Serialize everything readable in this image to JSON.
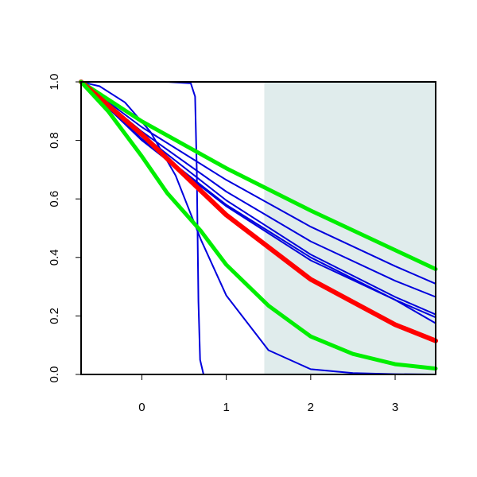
{
  "chart_data": {
    "type": "line",
    "title": "",
    "xlabel": "",
    "ylabel": "",
    "xlim": [
      -0.72,
      3.48
    ],
    "ylim": [
      0,
      1
    ],
    "x_ticks": [
      0,
      1,
      2,
      3
    ],
    "x_tick_labels": [
      "0",
      "1",
      "2",
      "3"
    ],
    "y_ticks": [
      0,
      0.2,
      0.4,
      0.6,
      0.8,
      1.0
    ],
    "y_tick_labels": [
      "0.0",
      "0.2",
      "0.4",
      "0.6",
      "0.8",
      "1.0"
    ],
    "grid": false,
    "shaded_region": {
      "x_from": 1.45,
      "x_to": 3.48,
      "color": "#e0ecec"
    },
    "colors": {
      "blue": "#0000dd",
      "red": "#ff0000",
      "green": "#00ee00"
    },
    "series": [
      {
        "color": "blue",
        "width": 2,
        "x": [
          -0.72,
          0.3,
          0.58,
          0.63,
          0.65,
          0.67,
          0.69,
          0.73,
          3.48
        ],
        "y": [
          1.0,
          1.0,
          0.995,
          0.95,
          0.7,
          0.25,
          0.05,
          0.0,
          0.0
        ]
      },
      {
        "color": "blue",
        "width": 2,
        "x": [
          -0.72,
          -0.5,
          -0.2,
          0.1,
          0.4,
          0.7,
          1.0,
          1.5,
          2.0,
          2.5,
          3.0,
          3.48
        ],
        "y": [
          1.0,
          0.985,
          0.93,
          0.83,
          0.68,
          0.46,
          0.27,
          0.083,
          0.018,
          0.005,
          0.001,
          0.0
        ]
      },
      {
        "color": "blue",
        "width": 2,
        "x": [
          -0.72,
          0.0,
          1.0,
          2.0,
          3.0,
          3.48
        ],
        "y": [
          1.0,
          0.845,
          0.665,
          0.505,
          0.37,
          0.31
        ]
      },
      {
        "color": "blue",
        "width": 2,
        "x": [
          -0.72,
          0.0,
          1.0,
          2.0,
          3.0,
          3.48
        ],
        "y": [
          1.0,
          0.83,
          0.625,
          0.455,
          0.32,
          0.265
        ]
      },
      {
        "color": "blue",
        "width": 2,
        "x": [
          -0.72,
          0.0,
          1.0,
          2.0,
          3.0,
          3.48
        ],
        "y": [
          1.0,
          0.82,
          0.595,
          0.41,
          0.265,
          0.205
        ]
      },
      {
        "color": "blue",
        "width": 2,
        "x": [
          -0.72,
          0.0,
          1.0,
          2.0,
          3.0,
          3.48
        ],
        "y": [
          1.0,
          0.8,
          0.575,
          0.39,
          0.255,
          0.195
        ]
      },
      {
        "color": "blue",
        "width": 2,
        "x": [
          -0.72,
          0.0,
          1.0,
          2.0,
          3.0,
          3.48
        ],
        "y": [
          1.0,
          0.805,
          0.58,
          0.4,
          0.255,
          0.175
        ]
      },
      {
        "color": "green",
        "width": 5,
        "x": [
          -0.72,
          0.0,
          1.0,
          2.0,
          3.0,
          3.48
        ],
        "y": [
          1.0,
          0.865,
          0.705,
          0.56,
          0.425,
          0.36
        ]
      },
      {
        "color": "red",
        "width": 6,
        "x": [
          -0.72,
          0.0,
          1.0,
          2.0,
          3.0,
          3.48
        ],
        "y": [
          1.0,
          0.82,
          0.545,
          0.325,
          0.17,
          0.115
        ]
      },
      {
        "color": "green",
        "width": 5,
        "x": [
          -0.72,
          -0.4,
          0.0,
          0.3,
          0.7,
          1.0,
          1.5,
          2.0,
          2.5,
          3.0,
          3.48
        ],
        "y": [
          1.0,
          0.9,
          0.745,
          0.62,
          0.49,
          0.375,
          0.235,
          0.13,
          0.07,
          0.035,
          0.02
        ]
      }
    ]
  }
}
